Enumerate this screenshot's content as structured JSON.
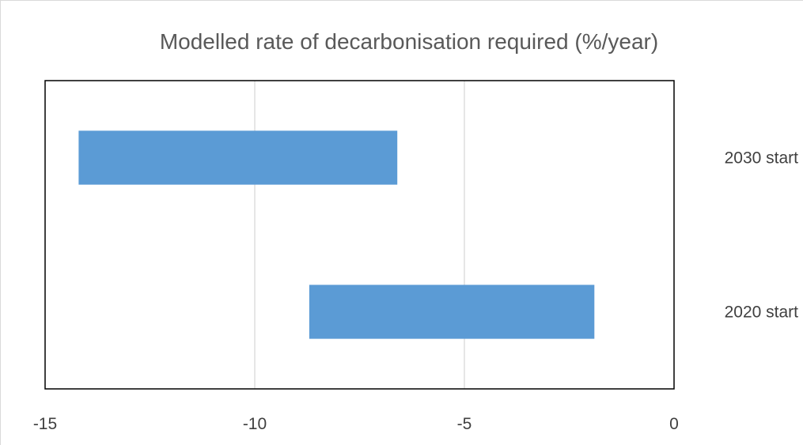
{
  "chart_data": {
    "type": "bar",
    "orientation": "horizontal",
    "chart_style": "floating range bars",
    "title": "Modelled rate of decarbonisation required (%/year)",
    "xlabel": "",
    "ylabel": "",
    "xlim": [
      -15,
      0
    ],
    "x_ticks": [
      -15,
      -10,
      -5,
      0
    ],
    "x_tick_labels": [
      "-15",
      "-10",
      "-5",
      "0"
    ],
    "categories": [
      "2030 start",
      "2020 start"
    ],
    "category_axis_side": "right",
    "series": [
      {
        "ranges": [
          [
            -14.2,
            -6.6
          ],
          [
            -8.7,
            -1.9
          ]
        ]
      }
    ],
    "grid": {
      "vertical": true,
      "horizontal": false
    },
    "legend": "none",
    "colors": {
      "bar": "#5b9bd5",
      "grid": "#d9d9d9",
      "axis": "#000000",
      "title": "#595959",
      "text": "#404040"
    }
  }
}
